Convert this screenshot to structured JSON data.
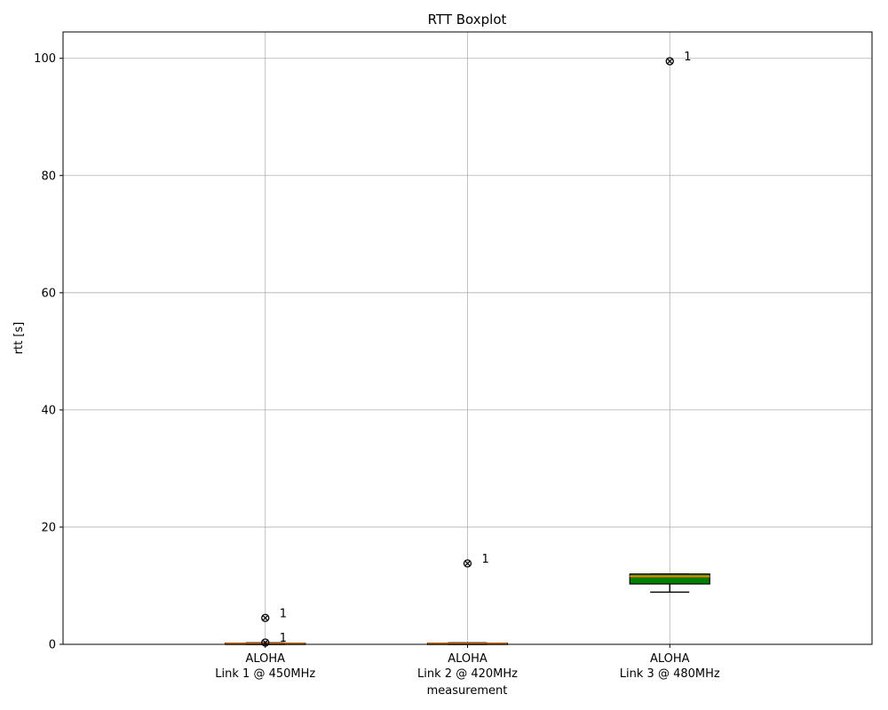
{
  "chart_data": {
    "type": "boxplot",
    "title": "RTT Boxplot",
    "xlabel": "measurement",
    "ylabel": "rtt [s]",
    "ylim": [
      0,
      104.5
    ],
    "yticks": [
      0,
      20,
      40,
      60,
      80,
      100
    ],
    "grid": true,
    "categories": [
      {
        "line1": "ALOHA",
        "line2": "Link 1 @ 450MHz"
      },
      {
        "line1": "ALOHA",
        "line2": "Link 2 @ 420MHz"
      },
      {
        "line1": "ALOHA",
        "line2": "Link 3 @ 480MHz"
      }
    ],
    "boxes": [
      {
        "whisker_low": 0.0,
        "q1": 0.05,
        "median": 0.1,
        "q3": 0.2,
        "whisker_high": 0.25,
        "fill": "#c0504d",
        "outliers": [
          {
            "value": 4.5,
            "label": "1"
          },
          {
            "value": 0.3,
            "label": "1"
          }
        ]
      },
      {
        "whisker_low": 0.0,
        "q1": 0.05,
        "median": 0.1,
        "q3": 0.2,
        "whisker_high": 0.25,
        "fill": "#c0504d",
        "outliers": [
          {
            "value": 13.8,
            "label": "1"
          }
        ]
      },
      {
        "whisker_low": 8.9,
        "q1": 10.3,
        "median": 11.6,
        "q3": 12.0,
        "whisker_high": 12.0,
        "fill": "#008000",
        "outliers": [
          {
            "value": 99.5,
            "label": "1"
          }
        ]
      }
    ],
    "colors": {
      "median": "#ff7f0e",
      "box_edge": "#000000",
      "grid": "#b0b0b0",
      "axis": "#000000"
    }
  }
}
